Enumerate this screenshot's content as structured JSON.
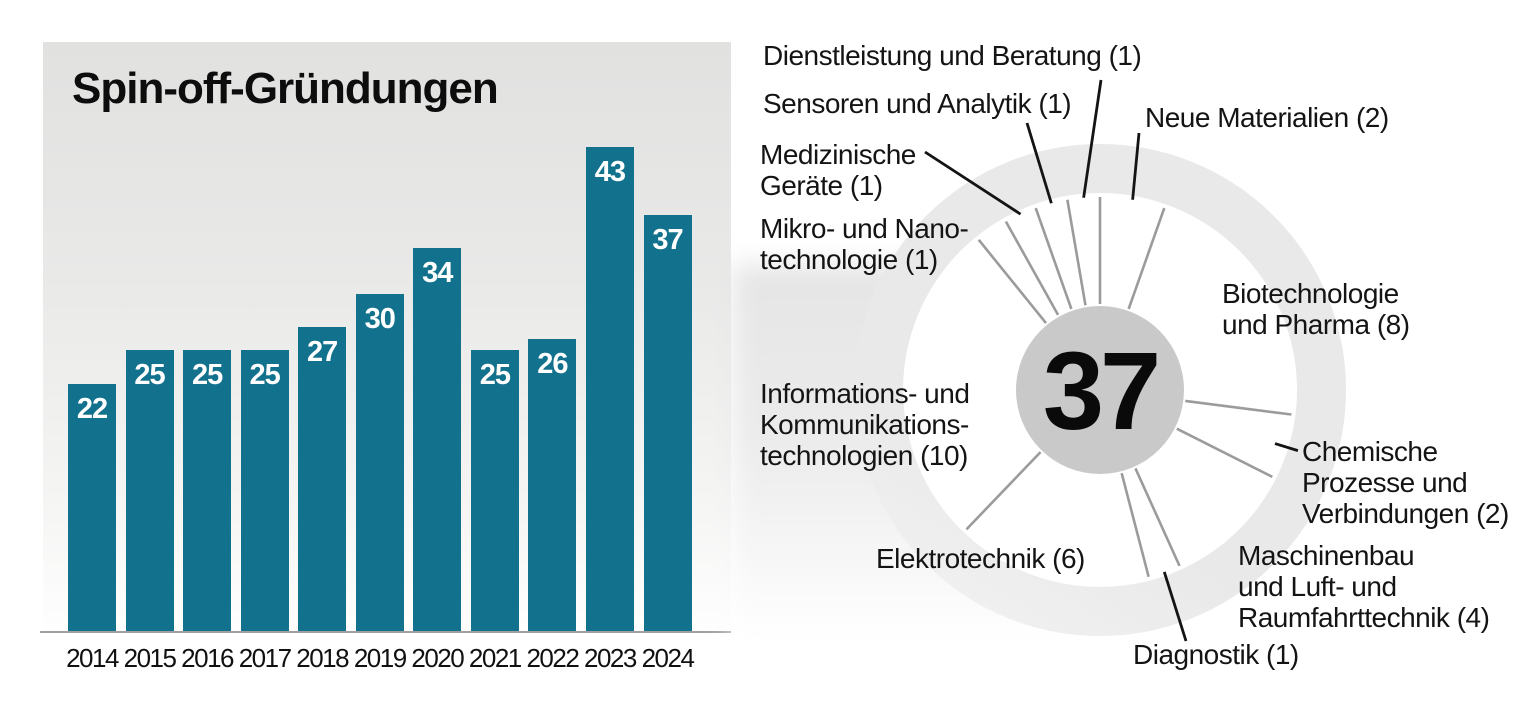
{
  "colors": {
    "bar": "#12718C",
    "ring": "#e9e9e9",
    "center_circle": "#c9c9c9",
    "separator_line": "#9b9b9b",
    "leader_line": "#141414",
    "panel_gradient_top": "#e1e1e0"
  },
  "chart_data": [
    {
      "type": "bar",
      "title": "Spin-off-Gründungen",
      "categories": [
        "2014",
        "2015",
        "2016",
        "2017",
        "2018",
        "2019",
        "2020",
        "2021",
        "2022",
        "2023",
        "2024"
      ],
      "values": [
        22,
        25,
        25,
        25,
        27,
        30,
        34,
        25,
        26,
        43,
        37
      ],
      "xlabel": "",
      "ylabel": "",
      "ylim": [
        0,
        52
      ],
      "grid": false,
      "legend": "none",
      "value_labels": "white, inside top of each bar"
    },
    {
      "type": "pie",
      "title": "",
      "center_label": "37",
      "total": 37,
      "legend": "radial labels with leader lines, clockwise from top",
      "slices": [
        {
          "label": "Neue Materialien (2)",
          "value": 2,
          "lines": [
            "Neue Materialien (2)"
          ]
        },
        {
          "label": "Biotechnologie und Pharma (8)",
          "value": 8,
          "lines": [
            "Biotechnologie",
            "und Pharma (8)"
          ]
        },
        {
          "label": "Chemische Prozesse und Verbindungen (2)",
          "value": 2,
          "lines": [
            "Chemische",
            "Prozesse und",
            "Verbindungen (2)"
          ]
        },
        {
          "label": "Maschinenbau und Luft- und Raumfahrttechnik (4)",
          "value": 4,
          "lines": [
            "Maschinenbau",
            "und Luft- und",
            "Raumfahrttechnik (4)"
          ]
        },
        {
          "label": "Diagnostik (1)",
          "value": 1,
          "lines": [
            "Diagnostik (1)"
          ]
        },
        {
          "label": "Elektrotechnik (6)",
          "value": 6,
          "lines": [
            "Elektrotechnik (6)"
          ]
        },
        {
          "label": "Informations- und Kommunikationstechnologien (10)",
          "value": 10,
          "lines": [
            "Informations- und",
            "Kommunikations-",
            "technologien (10)"
          ]
        },
        {
          "label": "Mikro- und Nanotechnologie (1)",
          "value": 1,
          "lines": [
            "Mikro- und Nano-",
            "technologie (1)"
          ]
        },
        {
          "label": "Medizinische Geräte (1)",
          "value": 1,
          "lines": [
            "Medizinische",
            "Geräte (1)"
          ]
        },
        {
          "label": "Sensoren und Analytik (1)",
          "value": 1,
          "lines": [
            "Sensoren und Analytik (1)"
          ]
        },
        {
          "label": "Dienstleistung und Beratung (1)",
          "value": 1,
          "lines": [
            "Dienstleistung und Beratung (1)"
          ]
        }
      ]
    }
  ]
}
